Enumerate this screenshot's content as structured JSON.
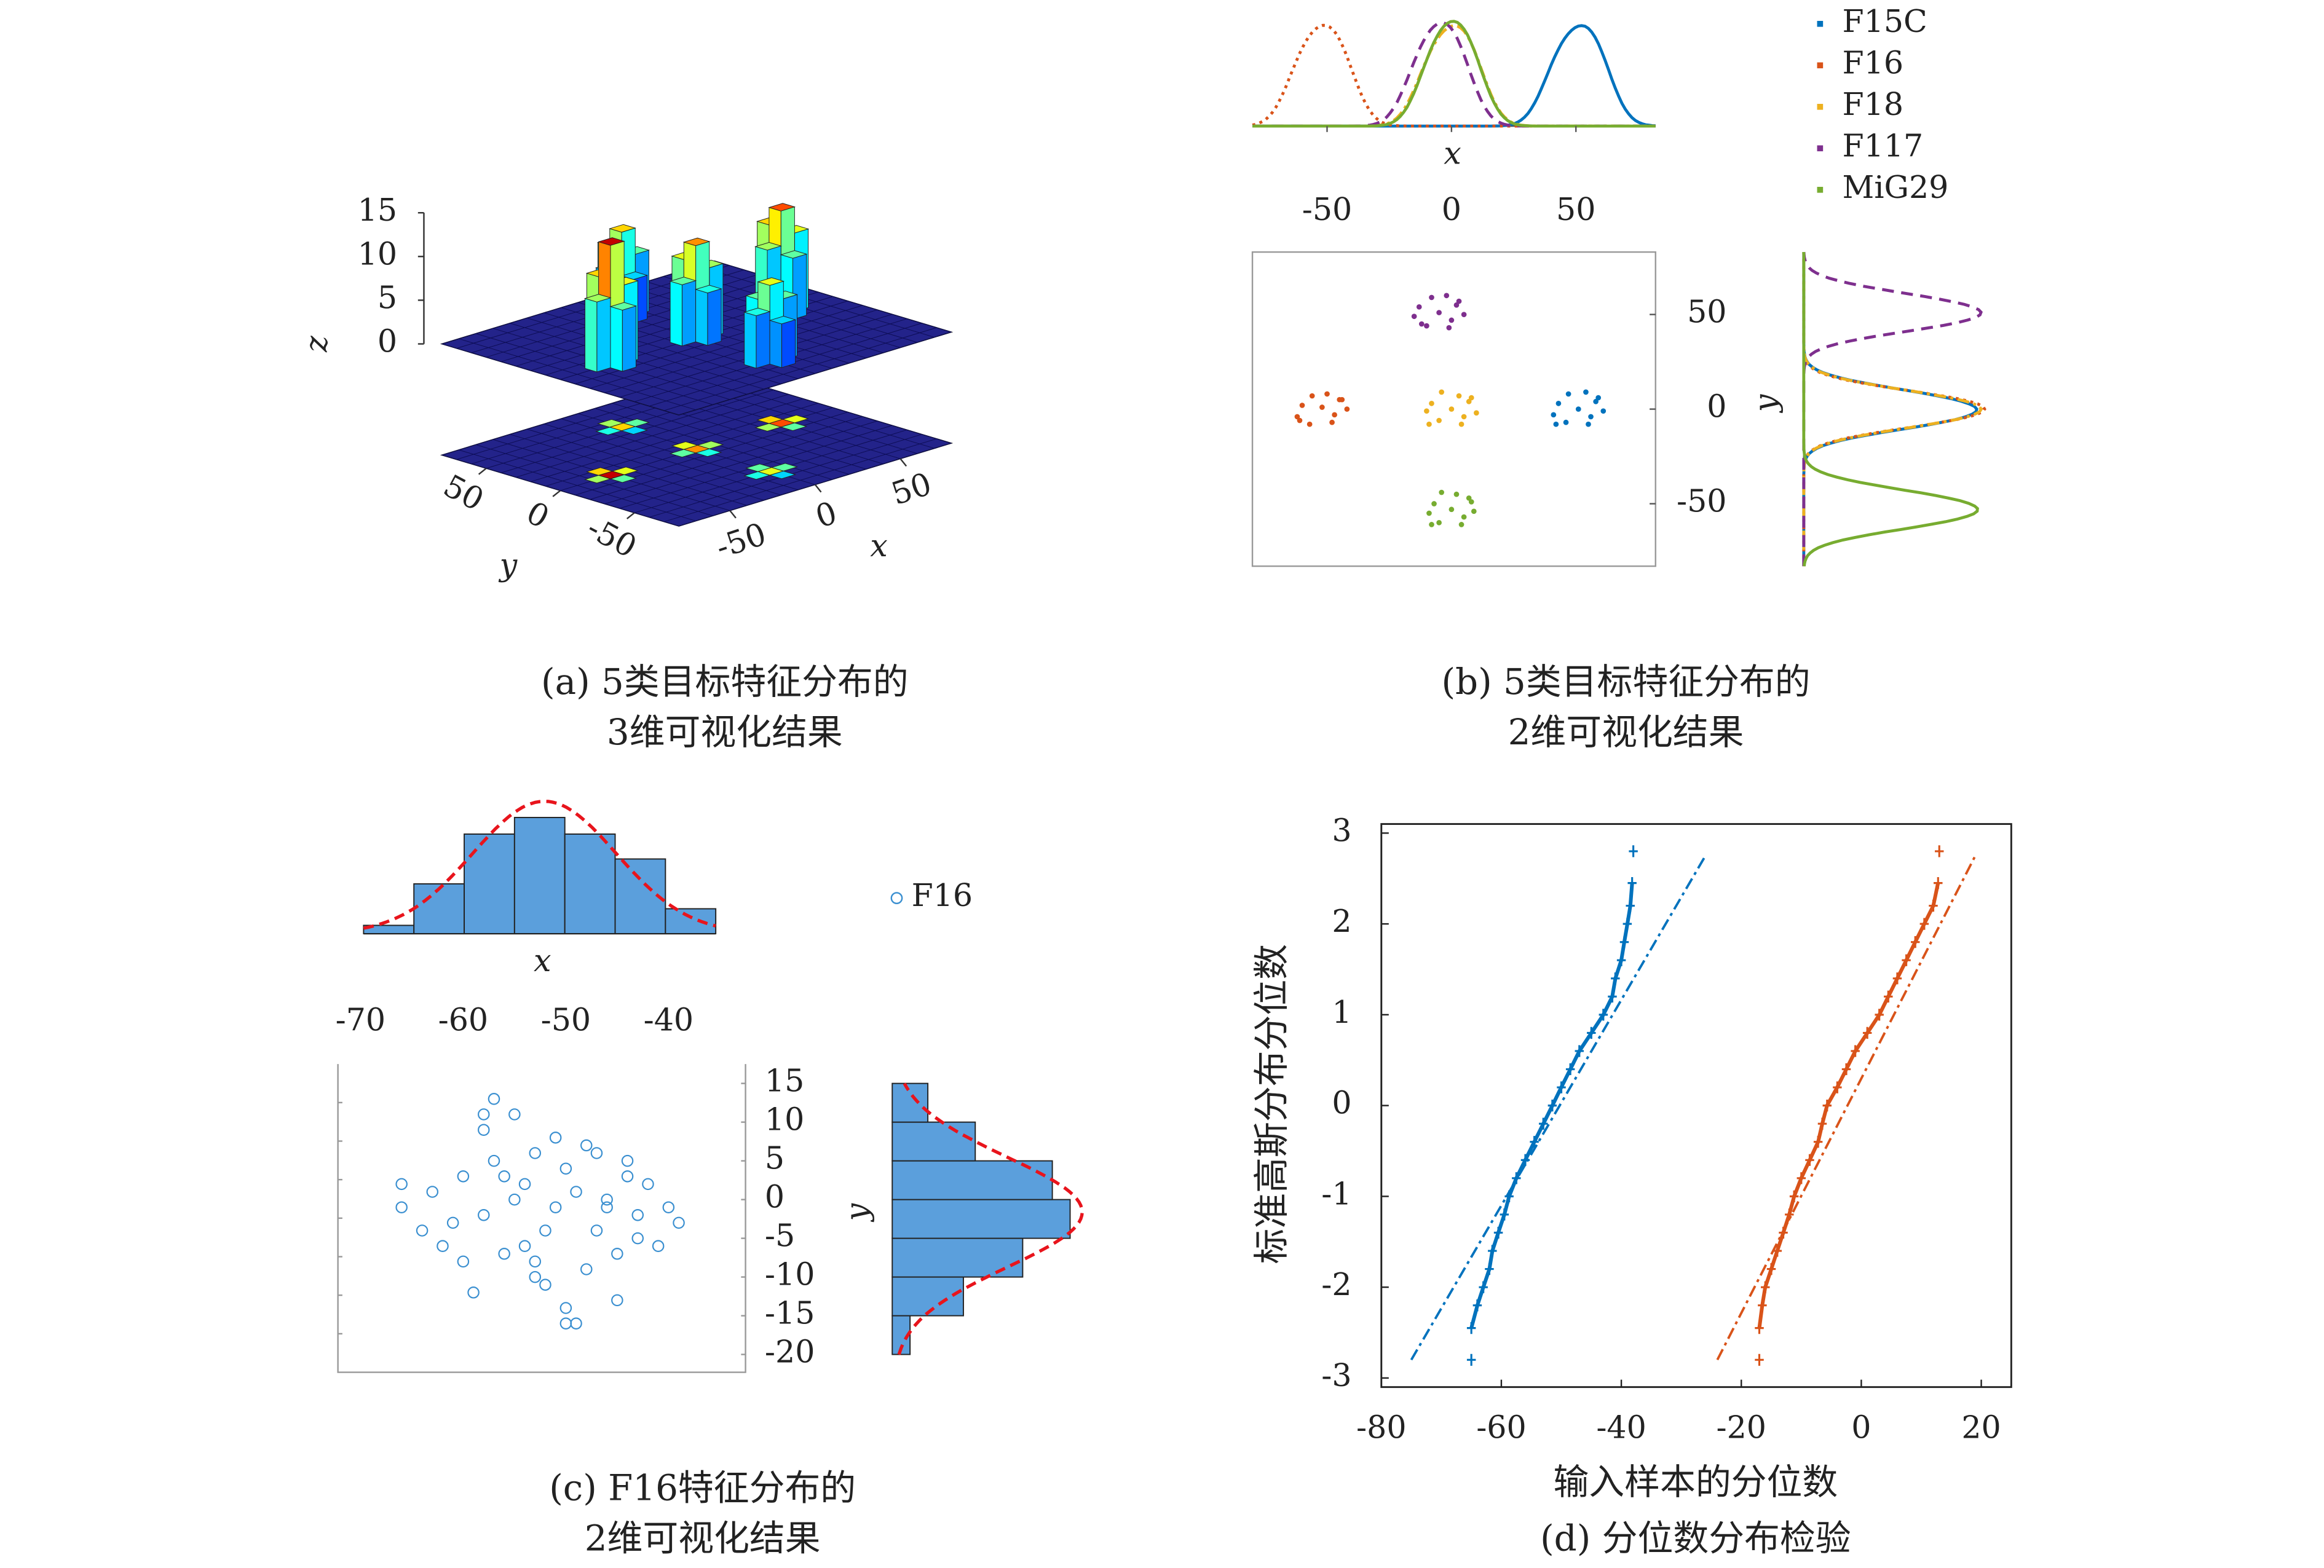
{
  "chart_data": [
    {
      "type": "bar3d",
      "caption": [
        "(a) 5类目标特征分布的",
        "3维可视化结果"
      ],
      "xlabel": "x",
      "ylabel": "y",
      "zlabel": "z",
      "x": [
        -50,
        -42,
        -58,
        -50,
        -50,
        0,
        8,
        -8,
        0,
        0,
        50,
        58,
        42,
        50,
        50,
        0,
        8,
        -8,
        0,
        0,
        0,
        8,
        -8,
        0,
        0
      ],
      "y": [
        0,
        0,
        0,
        8,
        -8,
        0,
        0,
        0,
        8,
        -8,
        0,
        0,
        0,
        8,
        -8,
        50,
        50,
        50,
        58,
        42,
        -50,
        -50,
        -50,
        -42,
        -58
      ],
      "z": [
        14,
        9,
        8,
        10,
        7,
        11,
        8,
        7,
        9,
        6,
        12,
        9,
        8,
        10,
        7,
        10,
        7,
        6,
        8,
        5,
        9,
        7,
        6,
        7,
        5
      ],
      "xlim": [
        -80,
        80
      ],
      "ylim": [
        -80,
        80
      ],
      "zlim": [
        0,
        15
      ],
      "xticks": [
        -50,
        0,
        50
      ],
      "yticks": [
        -50,
        0,
        50
      ],
      "zticks": [
        0,
        5,
        10,
        15
      ]
    },
    {
      "type": "scatter_marginal",
      "caption": [
        "(b) 5类目标特征分布的",
        "2维可视化结果"
      ],
      "xlabel": "x",
      "ylabel": "y",
      "xlim": [
        -80,
        82
      ],
      "ylim": [
        -83,
        83
      ],
      "xticks": [
        -50,
        0,
        50
      ],
      "yticks": [
        -50,
        0,
        50
      ],
      "legend": "top-right",
      "series": [
        {
          "name": "F15C",
          "color": "#0072bd",
          "linestyle": "solid",
          "x": [
            51,
            58,
            43,
            55,
            46,
            61,
            41,
            54,
            47,
            59,
            42,
            56
          ],
          "values": [
            0,
            4,
            3,
            -8,
            -7,
            -1,
            -3,
            9,
            8,
            6,
            -8,
            -4
          ]
        },
        {
          "name": "F16",
          "color": "#d95319",
          "linestyle": "dotted",
          "x": [
            -52,
            -45,
            -60,
            -48,
            -57,
            -42,
            -62,
            -50,
            -56,
            -44,
            -61,
            -47
          ],
          "values": [
            1,
            5,
            2,
            -7,
            -8,
            0,
            -4,
            8,
            7,
            5,
            -6,
            -3
          ]
        },
        {
          "name": "F18",
          "color": "#edb120",
          "linestyle": "dashdot",
          "x": [
            0,
            7,
            -8,
            4,
            -5,
            10,
            -10,
            3,
            -4,
            8,
            -9,
            5
          ],
          "values": [
            0,
            4,
            3,
            -8,
            -6,
            -2,
            -1,
            7,
            9,
            6,
            -8,
            -4
          ]
        },
        {
          "name": "F117",
          "color": "#7e2f8e",
          "linestyle": "dashed",
          "x": [
            -5,
            2,
            -13,
            -1,
            -10,
            5,
            -15,
            -2,
            -8,
            3,
            -12,
            0
          ],
          "values": [
            51,
            55,
            54,
            43,
            44,
            50,
            49,
            60,
            59,
            57,
            45,
            47
          ]
        },
        {
          "name": "MiG29",
          "color": "#77ac30",
          "linestyle": "solid",
          "x": [
            0,
            8,
            -7,
            4,
            -5,
            9,
            -9,
            2,
            -4,
            7,
            -8,
            5
          ],
          "values": [
            -53,
            -49,
            -50,
            -61,
            -60,
            -54,
            -55,
            -45,
            -44,
            -47,
            -61,
            -57
          ]
        }
      ]
    },
    {
      "type": "scatter_hist",
      "caption": [
        "(c) F16特征分布的",
        "2维可视化结果"
      ],
      "xlabel": "x",
      "ylabel": "y",
      "xlim": [
        -72.2,
        -32.5
      ],
      "ylim": [
        -22.3,
        17.5
      ],
      "xticks": [
        -70,
        -60,
        -50,
        -40
      ],
      "yticks": [
        15,
        10,
        5,
        0,
        -5,
        -10,
        -15,
        -20
      ],
      "series": [
        {
          "name": "F16",
          "color": "#3a8fd0",
          "x": [
            -66,
            -64,
            -63,
            -61,
            -60,
            -59,
            -58,
            -57,
            -56,
            -55,
            -54,
            -53,
            -52,
            -51,
            -50,
            -49,
            -48,
            -47,
            -46,
            -45,
            -44,
            -43,
            -42,
            -40,
            -39,
            -66,
            -62,
            -60,
            -58,
            -57,
            -55,
            -54,
            -53,
            -52,
            -51,
            -50,
            -49,
            -48,
            -47,
            -46,
            -45,
            -44,
            -43,
            -41,
            -56,
            -53,
            -50,
            -58
          ],
          "values": [
            -1,
            -4,
            1,
            -3,
            3,
            -12,
            9,
            5,
            -7,
            11,
            2,
            -10,
            -4,
            8,
            -16,
            1,
            -9,
            6,
            -1,
            -13,
            3,
            -5,
            2,
            -1,
            -3,
            2,
            -6,
            -8,
            -2,
            13,
            0,
            -6,
            6,
            -11,
            -1,
            4,
            -16,
            7,
            -4,
            0,
            -7,
            5,
            -2,
            -6,
            3,
            -8,
            -14,
            11
          ]
        }
      ],
      "hist_color": "#5b9fdc",
      "fit_color": "#e8141c",
      "x_hist": {
        "bins": [
          -69.7,
          -64.8,
          -59.9,
          -55,
          -50.1,
          -45.2,
          -40.3,
          -35.4
        ],
        "counts": [
          2,
          12,
          24,
          28,
          24,
          18,
          6
        ]
      },
      "y_hist": {
        "bins": [
          -20,
          -15,
          -10,
          -5,
          0,
          5,
          10,
          15
        ],
        "counts": [
          3,
          12,
          22,
          30,
          27,
          14,
          6
        ]
      }
    },
    {
      "type": "qq",
      "caption": [
        "(d) 分位数分布检验"
      ],
      "xlabel": "输入样本的分位数",
      "ylabel": "标准高斯分布分位数",
      "xlim": [
        -80,
        25
      ],
      "ylim": [
        -3.1,
        3.1
      ],
      "xticks": [
        -80,
        -60,
        -40,
        -20,
        0,
        20
      ],
      "yticks": [
        3,
        2,
        1,
        0,
        -1,
        -2,
        -3
      ],
      "series": [
        {
          "color": "#0072bd",
          "x": [
            -65,
            -65,
            -64,
            -63,
            -62,
            -61.5,
            -60.5,
            -59.5,
            -58.7,
            -57.5,
            -56,
            -54.5,
            -53,
            -51.5,
            -50,
            -48.5,
            -47,
            -45,
            -43,
            -41.5,
            -41,
            -40,
            -39.5,
            -39,
            -38.5,
            -38.2,
            -38
          ],
          "values": [
            -2.8,
            -2.45,
            -2.2,
            -2.0,
            -1.8,
            -1.6,
            -1.4,
            -1.2,
            -1,
            -0.8,
            -0.6,
            -0.4,
            -0.2,
            0,
            0.2,
            0.4,
            0.6,
            0.8,
            1,
            1.2,
            1.4,
            1.6,
            1.8,
            2.0,
            2.2,
            2.45,
            2.8
          ],
          "reference_line": {
            "x": [
              -75,
              -26
            ],
            "values": [
              -2.8,
              2.75
            ]
          }
        },
        {
          "color": "#d95319",
          "x": [
            -17,
            -17,
            -16.5,
            -16,
            -15,
            -14,
            -13,
            -12,
            -11.2,
            -10,
            -8.6,
            -7.2,
            -6.5,
            -5.7,
            -4,
            -2.5,
            -1,
            1,
            3,
            4.5,
            6,
            7.5,
            9,
            10.5,
            12,
            12.8,
            13
          ],
          "values": [
            -2.8,
            -2.45,
            -2.2,
            -2.0,
            -1.8,
            -1.6,
            -1.4,
            -1.2,
            -1,
            -0.8,
            -0.6,
            -0.4,
            -0.2,
            0,
            0.2,
            0.4,
            0.6,
            0.8,
            1,
            1.2,
            1.4,
            1.6,
            1.8,
            2.0,
            2.2,
            2.45,
            2.8
          ],
          "reference_line": {
            "x": [
              -24,
              19
            ],
            "values": [
              -2.8,
              2.75
            ]
          }
        }
      ]
    }
  ]
}
